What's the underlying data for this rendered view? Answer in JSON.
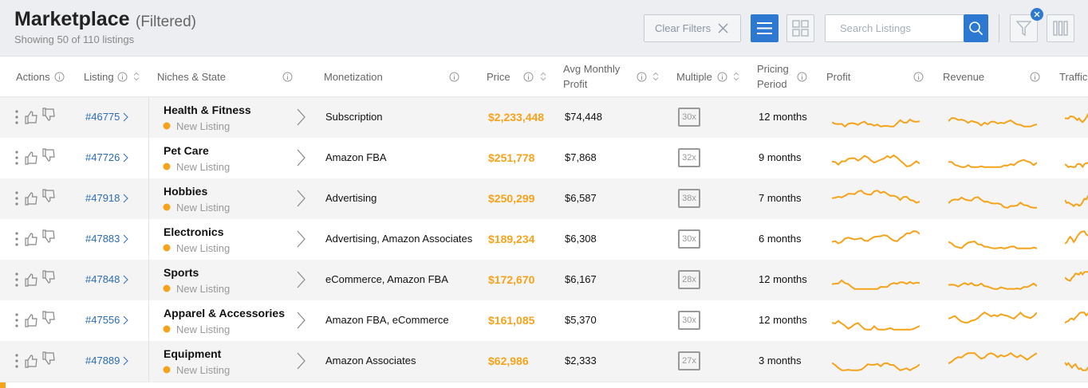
{
  "header": {
    "title": "Marketplace",
    "filter_note": "(Filtered)",
    "count": "Showing 50 of 110 listings"
  },
  "toolbar": {
    "clear_filters": "Clear Filters",
    "search_placeholder": "Search Listings"
  },
  "columns": [
    "Actions",
    "Listing",
    "Niches & State",
    "Monetization",
    "Price",
    "Avg Monthly Profit",
    "Multiple",
    "Pricing Period",
    "Profit",
    "Revenue",
    "Traffic"
  ],
  "rows": [
    {
      "id": "#46775",
      "niche": "Health & Fitness",
      "status": "New Listing",
      "monetization": "Subscription",
      "price": "$2,233,448",
      "profit": "$74,448",
      "multiple": "30x",
      "period": "12 months"
    },
    {
      "id": "#47726",
      "niche": "Pet Care",
      "status": "New Listing",
      "monetization": "Amazon FBA",
      "price": "$251,778",
      "profit": "$7,868",
      "multiple": "32x",
      "period": "9 months"
    },
    {
      "id": "#47918",
      "niche": "Hobbies",
      "status": "New Listing",
      "monetization": "Advertising",
      "price": "$250,299",
      "profit": "$6,587",
      "multiple": "38x",
      "period": "7 months"
    },
    {
      "id": "#47883",
      "niche": "Electronics",
      "status": "New Listing",
      "monetization": "Advertising, Amazon Associates",
      "price": "$189,234",
      "profit": "$6,308",
      "multiple": "30x",
      "period": "6 months"
    },
    {
      "id": "#47848",
      "niche": "Sports",
      "status": "New Listing",
      "monetization": "eCommerce, Amazon FBA",
      "price": "$172,670",
      "profit": "$6,167",
      "multiple": "28x",
      "period": "12 months"
    },
    {
      "id": "#47556",
      "niche": "Apparel & Accessories",
      "status": "New Listing",
      "monetization": "Amazon FBA, eCommerce",
      "price": "$161,085",
      "profit": "$5,370",
      "multiple": "30x",
      "period": "12 months"
    },
    {
      "id": "#47889",
      "niche": "Equipment",
      "status": "New Listing",
      "monetization": "Amazon Associates",
      "price": "$62,986",
      "profit": "$2,333",
      "multiple": "27x",
      "period": "3 months"
    }
  ]
}
